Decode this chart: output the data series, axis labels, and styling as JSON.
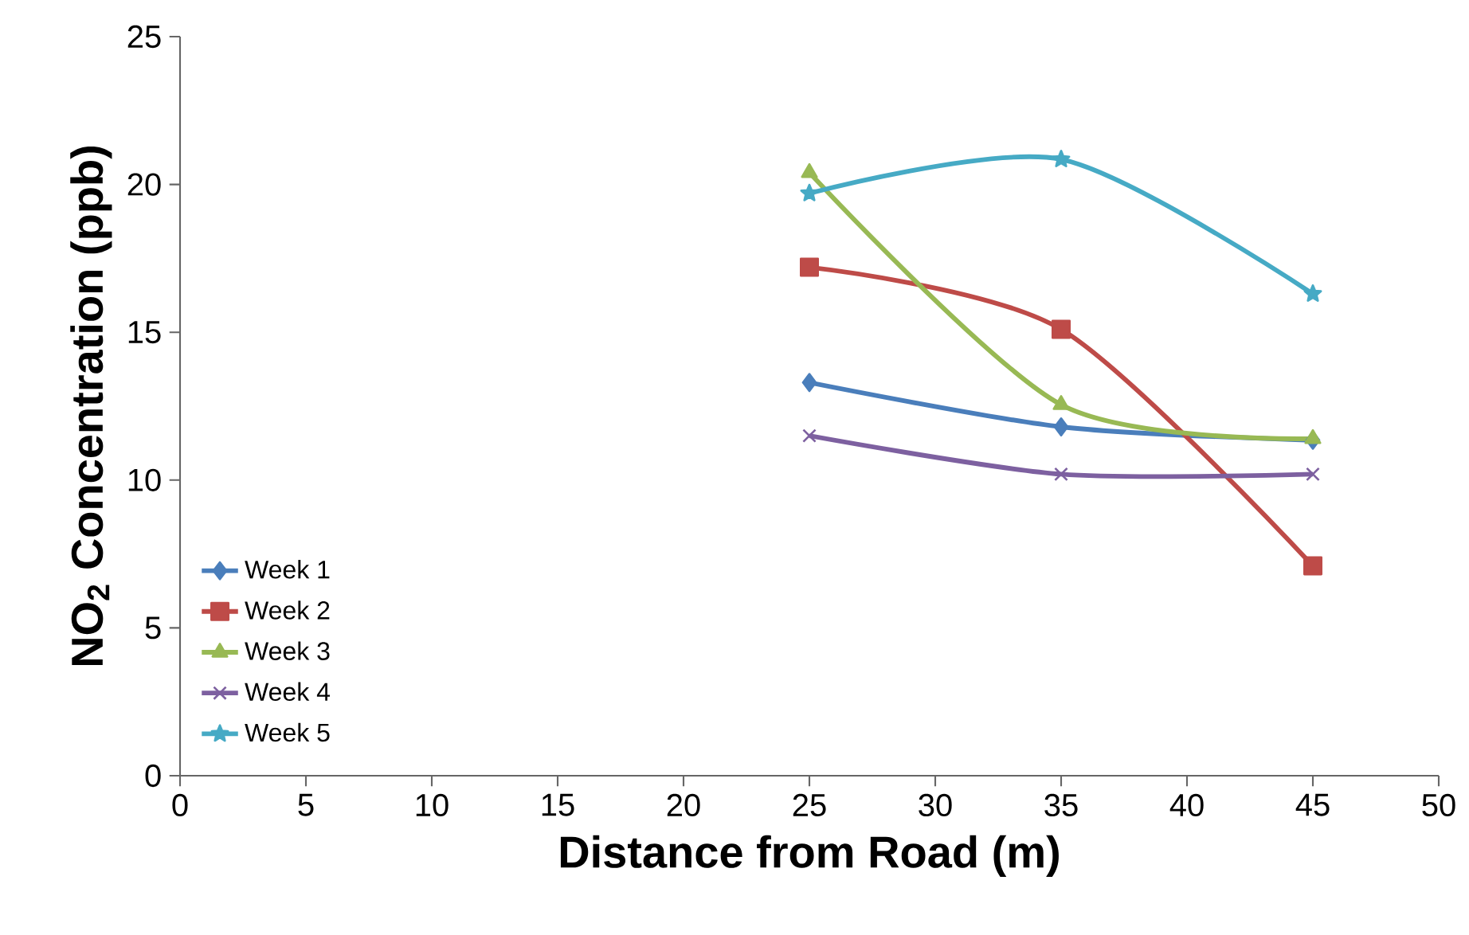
{
  "chart_data": {
    "type": "line",
    "xlabel": "Distance from Road (m)",
    "ylabel": "NO$_{2}$ Concentration (ppb)",
    "xlim": [
      0,
      50
    ],
    "xticks": [
      0,
      5,
      10,
      15,
      20,
      25,
      30,
      35,
      40,
      45,
      50
    ],
    "ylim": [
      0,
      25
    ],
    "yticks": [
      0,
      5,
      10,
      15,
      20,
      25
    ],
    "x": [
      25,
      35,
      45
    ],
    "legend": "bottom left",
    "grid": false,
    "line_style": "solid",
    "series": [
      {
        "name": "Week 1",
        "color": "#4a7ebb",
        "marker": "diamond",
        "values": [
          13.3,
          11.8,
          11.35
        ]
      },
      {
        "name": "Week 2",
        "color": "#be4b48",
        "marker": "square",
        "values": [
          17.2,
          15.1,
          7.1
        ]
      },
      {
        "name": "Week 3",
        "color": "#98b954",
        "marker": "triangle",
        "values": [
          20.4,
          12.55,
          11.4
        ]
      },
      {
        "name": "Week 4",
        "color": "#7d60a0",
        "marker": "cross",
        "values": [
          11.5,
          10.2,
          10.2
        ]
      },
      {
        "name": "Week 5",
        "color": "#46aac5",
        "marker": "star",
        "values": [
          19.7,
          20.85,
          16.3
        ]
      }
    ]
  }
}
